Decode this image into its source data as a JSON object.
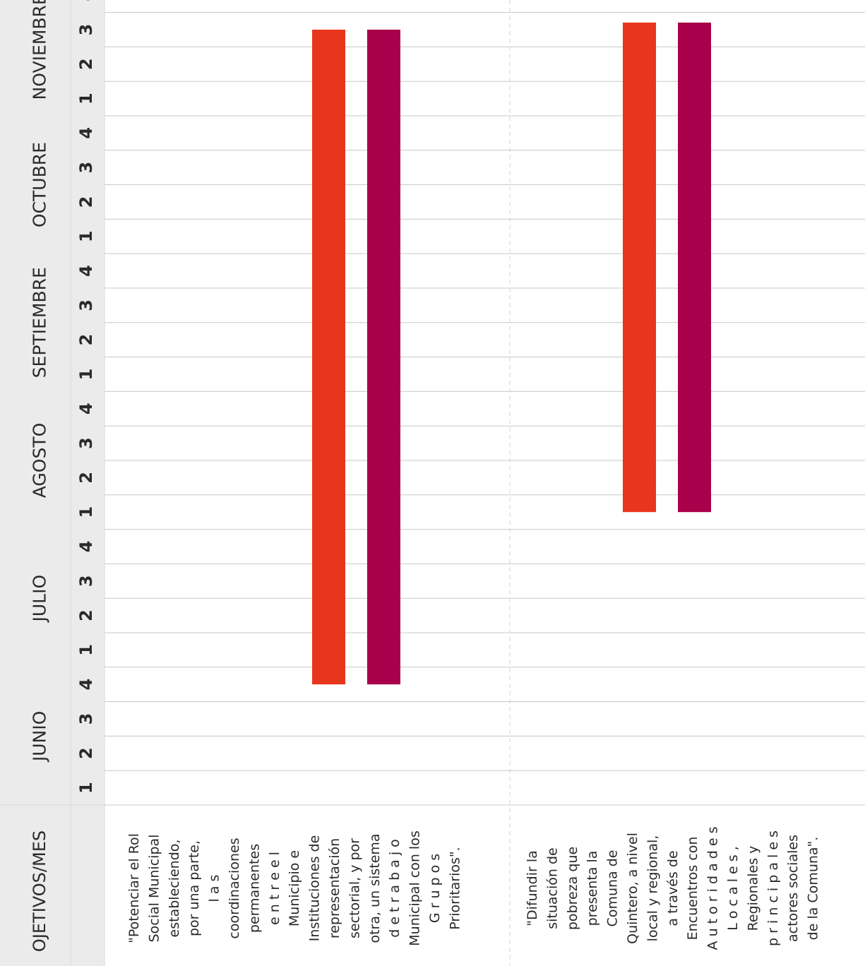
{
  "chart_data": {
    "type": "gantt",
    "header_label": "OJETIVOS/MES",
    "months": [
      "JUNIO",
      "JULIO",
      "AGOSTO",
      "SEPTIEMBRE",
      "OCTUBRE",
      "NOVIEMBRE"
    ],
    "week_labels": [
      "1",
      "2",
      "3",
      "4"
    ],
    "objectives": [
      {
        "lines": [
          "\"Potenciar el Rol",
          "Social Municipal",
          "estableciendo,",
          "por una parte,",
          "l   a   s",
          "coordinaciones",
          "permanentes",
          "e n t r e   e l",
          "Municipio  e",
          "Instituciones de",
          "representación",
          "sectorial, y por",
          "otra, un sistema",
          "d e   t r a b a j o",
          "Municipal con los",
          "G  r  u  p  o  s",
          "Prioritarios\"."
        ],
        "bars": [
          {
            "start": "JUNIO semana 4",
            "end": "NOVIEMBRE semana 3",
            "color": "#e8361c"
          },
          {
            "start": "JUNIO semana 4",
            "end": "NOVIEMBRE semana 3",
            "color": "#a8004a"
          }
        ]
      },
      {
        "lines": [
          "\"Difundir   la",
          "situación  de",
          "pobreza  que",
          "presenta  la",
          "Comuna  de",
          "Quintero, a nivel",
          "local y regional,",
          "a  través  de",
          "Encuentros con",
          "A u t o r i d a d e s",
          "L o c a l e s ,",
          "Regionales  y",
          "p r i n c i p a l e s",
          "actores sociales",
          "de la Comuna\"."
        ],
        "bars": [
          {
            "start": "AGOSTO semana 1",
            "end": "NOVIEMBRE semana 4",
            "color": "#e8361c"
          },
          {
            "start": "AGOSTO semana 1",
            "end": "NOVIEMBRE semana 4",
            "color": "#a8004a"
          }
        ]
      }
    ],
    "colors": {
      "header_bg": "#ebebeb",
      "grid": "#c8c8c8",
      "text": "#2a2a2a",
      "bar_orange": "#e8361c",
      "bar_magenta": "#a8004a"
    }
  }
}
